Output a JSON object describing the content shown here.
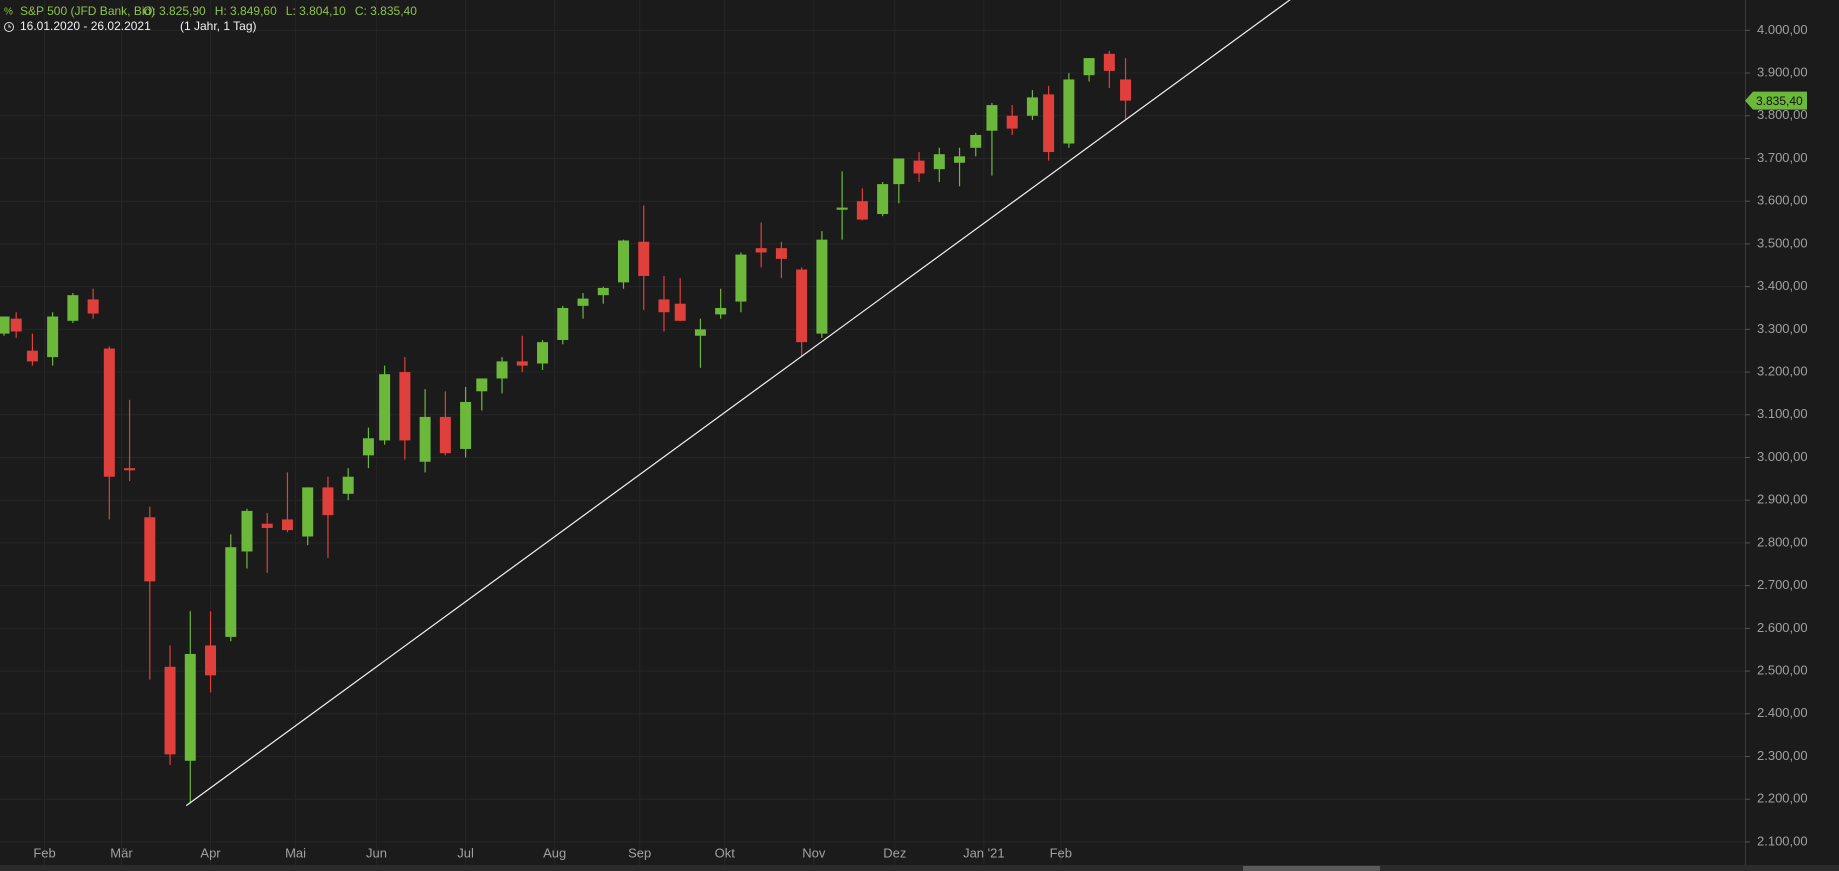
{
  "chart_data": {
    "type": "candlestick",
    "title": "S&P 500 (JFD Bank, Bid)",
    "ohlc_labels": [
      "O: 3.825,90",
      "H: 3.849,60",
      "L: 3.804,10",
      "C: 3.835,40"
    ],
    "range": "16.01.2020 - 26.02.2021",
    "period": "(1 Jahr, 1 Tag)",
    "up_color": "#6cb83a",
    "down_color": "#e0403c",
    "grid": true,
    "x": [
      11,
      14,
      18,
      23,
      28,
      33,
      37,
      42,
      47,
      52,
      57,
      62,
      67,
      71,
      76,
      81,
      86,
      91,
      96,
      101,
      105,
      110,
      115,
      120,
      125,
      129,
      134,
      139,
      144,
      149,
      154,
      159,
      164,
      169,
      174,
      178,
      183,
      188,
      193,
      198,
      203,
      208,
      213,
      218,
      223,
      228,
      232,
      237,
      242,
      247,
      251,
      255,
      260,
      265,
      269,
      274,
      279,
      284,
      288
    ],
    "open": [
      3290,
      3325,
      3250,
      3235,
      3320,
      3370,
      3255,
      2975,
      2860,
      2510,
      2290,
      2560,
      2580,
      2780,
      2845,
      2855,
      2815,
      2930,
      2915,
      3005,
      3040,
      3200,
      2990,
      3095,
      3020,
      3155,
      3185,
      3225,
      3220,
      3275,
      3355,
      3380,
      3410,
      3505,
      3370,
      3360,
      3285,
      3335,
      3365,
      3490,
      3490,
      3440,
      3290,
      3580,
      3600,
      3570,
      3640,
      3695,
      3675,
      3690,
      3725,
      3765,
      3800,
      3800,
      3850,
      3735,
      3895,
      3945,
      3885
    ],
    "high": [
      3330,
      3340,
      3290,
      3340,
      3385,
      3395,
      3260,
      3135,
      2885,
      2560,
      2640,
      2640,
      2820,
      2880,
      2870,
      2965,
      2930,
      2955,
      2975,
      3070,
      3215,
      3235,
      3160,
      3155,
      3165,
      3185,
      3235,
      3285,
      3275,
      3355,
      3385,
      3400,
      3510,
      3590,
      3425,
      3420,
      3325,
      3395,
      3480,
      3550,
      3505,
      3445,
      3530,
      3670,
      3630,
      3645,
      3700,
      3715,
      3725,
      3725,
      3760,
      3830,
      3825,
      3860,
      3870,
      3900,
      3935,
      3952,
      3935
    ],
    "low": [
      3285,
      3280,
      3215,
      3215,
      3315,
      3325,
      2855,
      2945,
      2480,
      2280,
      2190,
      2450,
      2570,
      2740,
      2730,
      2825,
      2795,
      2765,
      2900,
      2975,
      3030,
      2995,
      2965,
      3005,
      3000,
      3110,
      3150,
      3200,
      3205,
      3265,
      3325,
      3360,
      3395,
      3345,
      3295,
      3320,
      3210,
      3325,
      3340,
      3445,
      3420,
      3235,
      3280,
      3510,
      3555,
      3565,
      3595,
      3645,
      3645,
      3635,
      3705,
      3660,
      3755,
      3790,
      3695,
      3725,
      3880,
      3865,
      3790
    ],
    "close": [
      3330,
      3295,
      3225,
      3330,
      3380,
      3337,
      2955,
      2970,
      2710,
      2305,
      2540,
      2490,
      2790,
      2875,
      2835,
      2830,
      2930,
      2865,
      2955,
      3045,
      3195,
      3040,
      3095,
      3010,
      3130,
      3185,
      3225,
      3215,
      3270,
      3350,
      3372,
      3397,
      3508,
      3425,
      3340,
      3320,
      3300,
      3350,
      3475,
      3480,
      3465,
      3270,
      3510,
      3585,
      3557,
      3640,
      3700,
      3665,
      3710,
      3705,
      3755,
      3825,
      3770,
      3843,
      3715,
      3885,
      3935,
      3905,
      3835.4
    ],
    "xlim": [
      10,
      441
    ],
    "xticks": [
      {
        "value": 21,
        "label": "Feb"
      },
      {
        "value": 40,
        "label": "Mär"
      },
      {
        "value": 62,
        "label": "Apr"
      },
      {
        "value": 83,
        "label": "Mai"
      },
      {
        "value": 103,
        "label": "Jun"
      },
      {
        "value": 125,
        "label": "Jul"
      },
      {
        "value": 147,
        "label": "Aug"
      },
      {
        "value": 168,
        "label": "Sep"
      },
      {
        "value": 189,
        "label": "Okt"
      },
      {
        "value": 211,
        "label": "Nov"
      },
      {
        "value": 231,
        "label": "Dez"
      },
      {
        "value": 253,
        "label": "Jan '21"
      },
      {
        "value": 272,
        "label": "Feb"
      }
    ],
    "ylim": [
      2046,
      4071
    ],
    "yticks": [
      {
        "value": 2100,
        "label": "2.100,00"
      },
      {
        "value": 2200,
        "label": "2.200,00"
      },
      {
        "value": 2300,
        "label": "2.300,00"
      },
      {
        "value": 2400,
        "label": "2.400,00"
      },
      {
        "value": 2500,
        "label": "2.500,00"
      },
      {
        "value": 2600,
        "label": "2.600,00"
      },
      {
        "value": 2700,
        "label": "2.700,00"
      },
      {
        "value": 2800,
        "label": "2.800,00"
      },
      {
        "value": 2900,
        "label": "2.900,00"
      },
      {
        "value": 3000,
        "label": "3.000,00"
      },
      {
        "value": 3100,
        "label": "3.100,00"
      },
      {
        "value": 3200,
        "label": "3.200,00"
      },
      {
        "value": 3300,
        "label": "3.300,00"
      },
      {
        "value": 3400,
        "label": "3.400,00"
      },
      {
        "value": 3500,
        "label": "3.500,00"
      },
      {
        "value": 3600,
        "label": "3.600,00"
      },
      {
        "value": 3700,
        "label": "3.700,00"
      },
      {
        "value": 3800,
        "label": "3.800,00"
      },
      {
        "value": 3900,
        "label": "3.900,00"
      },
      {
        "value": 4000,
        "label": "4.000,00"
      }
    ],
    "last_price": {
      "value": 3835.4,
      "label": "3.835,40"
    },
    "trendline": {
      "x": [
        56,
        331
      ],
      "y": [
        2185,
        4088
      ]
    }
  }
}
